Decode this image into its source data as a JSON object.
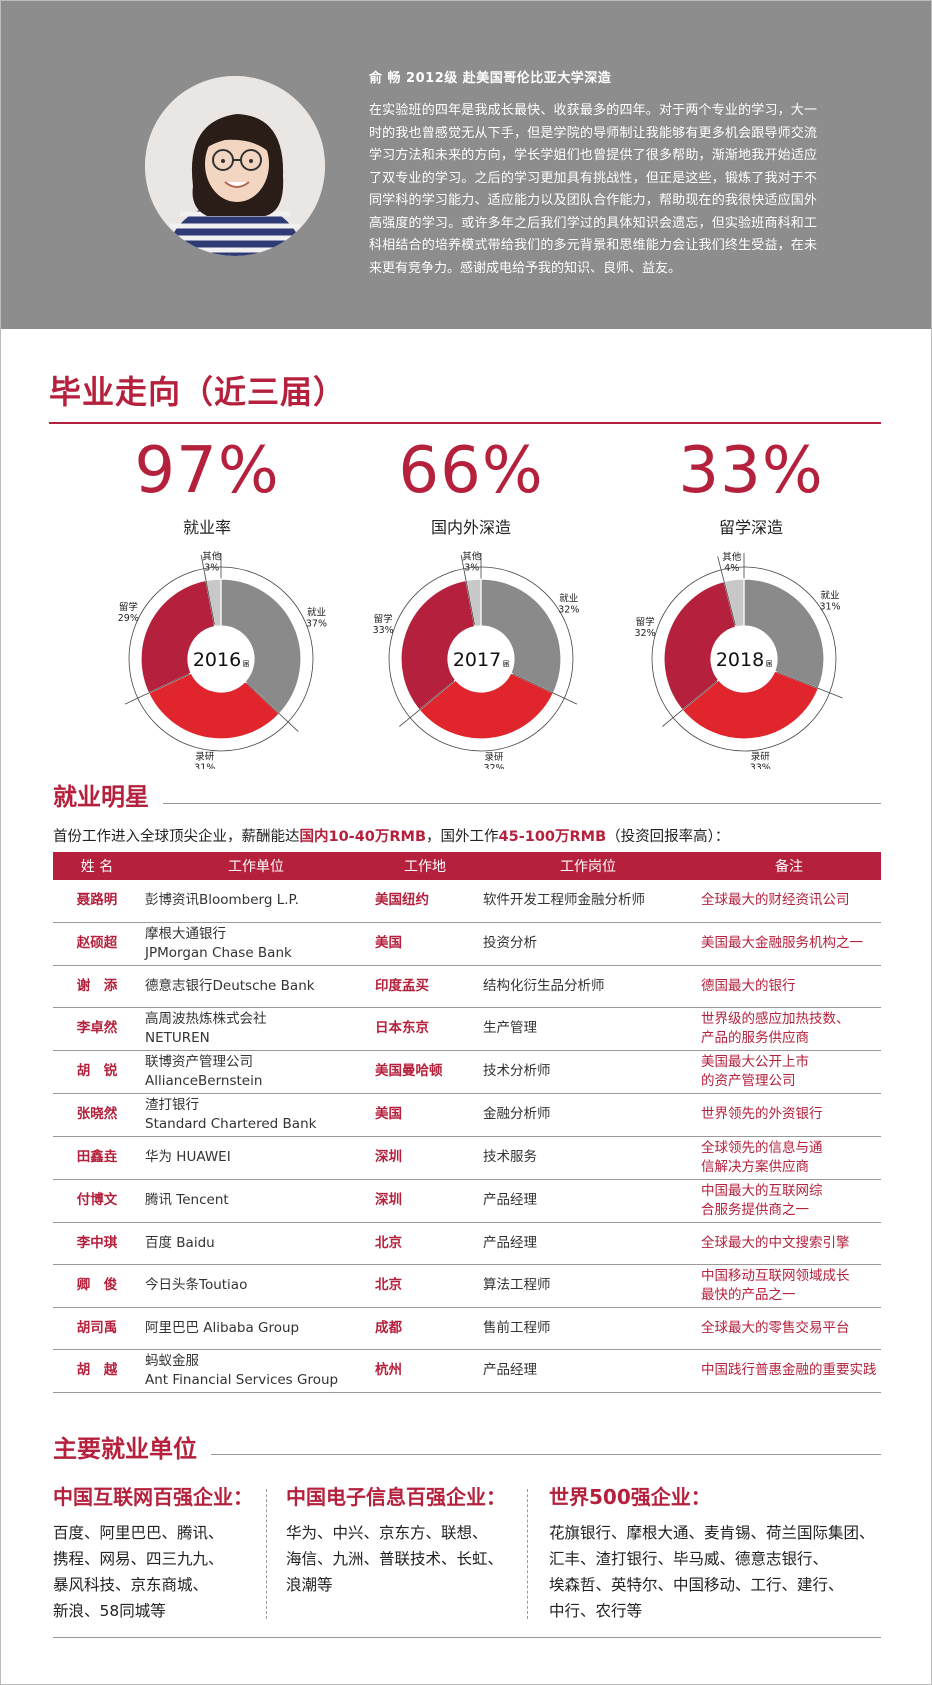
{
  "profile": {
    "title": "俞 畅 2012级 赴美国哥伦比亚大学深造",
    "bio": "在实验班的四年是我成长最快、收获最多的四年。对于两个专业的学习，大一时的我也曾感觉无从下手，但是学院的导师制让我能够有更多机会跟导师交流学习方法和未来的方向，学长学姐们也曾提供了很多帮助，渐渐地我开始适应了双专业的学习。之后的学习更加具有挑战性，但正是这些，锻炼了我对于不同学科的学习能力、适应能力以及团队合作能力，帮助现在的我很快适应国外高强度的学习。或许多年之后我们学过的具体知识会遗忘，但实验班商科和工科相结合的培养模式带给我们的多元背景和思维能力会让我们终生受益，在未来更有竞争力。感谢成电给予我的知识、良师、益友。"
  },
  "destination": {
    "title": "毕业走向（近三届）",
    "stats": [
      {
        "value": "97%",
        "label": "就业率"
      },
      {
        "value": "66%",
        "label": "国内外深造"
      },
      {
        "value": "33%",
        "label": "留学深造"
      }
    ]
  },
  "colors": {
    "brand": "#b5213c",
    "gray_panel": "#8d8d8e",
    "donut_gray": "#8a8a8a",
    "donut_red": "#e0262c",
    "donut_darkred": "#b5213c",
    "donut_light": "#c8c8c8"
  },
  "chart_data": [
    {
      "type": "pie",
      "center_label": "2016",
      "center_unit": "届",
      "slices": [
        {
          "label": "就业",
          "value": 37,
          "text": "37%",
          "color": "#8a8a8a"
        },
        {
          "label": "录研",
          "value": 31,
          "text": "31%",
          "color": "#e0262c"
        },
        {
          "label": "留学",
          "value": 29,
          "text": "29%",
          "color": "#b5213c"
        },
        {
          "label": "其他",
          "value": 3,
          "text": "3%",
          "color": "#c8c8c8"
        }
      ]
    },
    {
      "type": "pie",
      "center_label": "2017",
      "center_unit": "届",
      "slices": [
        {
          "label": "就业",
          "value": 32,
          "text": "32%",
          "color": "#8a8a8a"
        },
        {
          "label": "录研",
          "value": 32,
          "text": "32%",
          "color": "#e0262c"
        },
        {
          "label": "留学",
          "value": 33,
          "text": "33%",
          "color": "#b5213c"
        },
        {
          "label": "其他",
          "value": 3,
          "text": "3%",
          "color": "#c8c8c8"
        }
      ]
    },
    {
      "type": "pie",
      "center_label": "2018",
      "center_unit": "届",
      "slices": [
        {
          "label": "就业",
          "value": 31,
          "text": "31%",
          "color": "#8a8a8a"
        },
        {
          "label": "录研",
          "value": 33,
          "text": "33%",
          "color": "#e0262c"
        },
        {
          "label": "留学",
          "value": 32,
          "text": "32%",
          "color": "#b5213c"
        },
        {
          "label": "其他",
          "value": 4,
          "text": "4%",
          "color": "#c8c8c8"
        }
      ]
    }
  ],
  "stars": {
    "title": "就业明星",
    "intro_a": "首份工作进入全球顶尖企业，薪酬能达",
    "intro_b": "国内10-40万RMB",
    "intro_c": "，国外工作",
    "intro_d": "45-100万RMB",
    "intro_e": "（投资回报率高）：",
    "headers": [
      "姓 名",
      "工作单位",
      "工作地",
      "工作岗位",
      "备注"
    ],
    "rows": [
      {
        "name": "聂路明",
        "company": "彭博资讯Bloomberg L.P.",
        "location": "美国纽约",
        "job": "软件开发工程师金融分析师",
        "note": "全球最大的财经资讯公司"
      },
      {
        "name": "赵硕超",
        "company": "摩根大通银行\nJPMorgan Chase Bank",
        "location": "美国",
        "job": "投资分析",
        "note": "美国最大金融服务机构之一"
      },
      {
        "name": "谢　添",
        "company": "德意志银行Deutsche Bank",
        "location": "印度孟买",
        "job": "结构化衍生品分析师",
        "note": "德国最大的银行"
      },
      {
        "name": "李卓然",
        "company": "高周波热炼株式会社\nNETUREN",
        "location": "日本东京",
        "job": "生产管理",
        "note": "世界级的感应加热技数、\n产品的服务供应商"
      },
      {
        "name": "胡　锐",
        "company": "联博资产管理公司\nAllianceBernstein",
        "location": "美国曼哈顿",
        "job": "技术分析师",
        "note": "美国最大公开上市\n的资产管理公司"
      },
      {
        "name": "张晓然",
        "company": "渣打银行\nStandard Chartered Bank",
        "location": "美国",
        "job": "金融分析师",
        "note": "世界领先的外资银行"
      },
      {
        "name": "田鑫垚",
        "company": "华为 HUAWEI",
        "location": "深圳",
        "job": "技术服务",
        "note": "全球领先的信息与通\n信解决方案供应商"
      },
      {
        "name": "付博文",
        "company": "腾讯 Tencent",
        "location": "深圳",
        "job": "产品经理",
        "note": "中国最大的互联网综\n合服务提供商之一"
      },
      {
        "name": "李中琪",
        "company": "百度 Baidu",
        "location": "北京",
        "job": "产品经理",
        "note": "全球最大的中文搜索引擎"
      },
      {
        "name": "卿　俊",
        "company": "今日头条Toutiao",
        "location": "北京",
        "job": "算法工程师",
        "note": "中国移动互联网领域成长\n最快的产品之一"
      },
      {
        "name": "胡司禹",
        "company": "阿里巴巴 Alibaba Group",
        "location": "成都",
        "job": "售前工程师",
        "note": "全球最大的零售交易平台"
      },
      {
        "name": "胡　越",
        "company": "蚂蚁金服\nAnt Financial Services Group",
        "location": "杭州",
        "job": "产品经理",
        "note": "中国践行普惠金融的重要实践"
      }
    ]
  },
  "employers": {
    "title": "主要就业单位",
    "groups": [
      {
        "title": "中国互联网百强企业：",
        "body": "百度、阿里巴巴、腾讯、\n携程、网易、四三九九、\n暴风科技、京东商城、\n新浪、58同城等"
      },
      {
        "title": "中国电子信息百强企业：",
        "body": "华为、中兴、京东方、联想、\n海信、九洲、普联技术、长虹、\n浪潮等"
      },
      {
        "title": "世界500强企业：",
        "body": "花旗银行、摩根大通、麦肯锡、荷兰国际集团、\n汇丰、渣打银行、毕马威、德意志银行、\n埃森哲、英特尔、中国移动、工行、建行、\n中行、农行等"
      }
    ]
  }
}
